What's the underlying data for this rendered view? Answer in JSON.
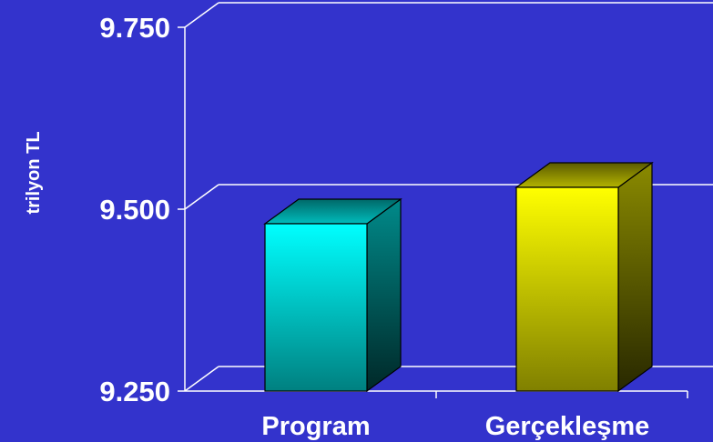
{
  "chart_data": {
    "type": "bar",
    "categories": [
      "Program",
      "Gerçekleşme"
    ],
    "values": [
      9.48,
      9.53
    ],
    "ylabel": "trilyon TL",
    "xlabel": "",
    "ylim": [
      9.25,
      9.75
    ],
    "yticks": [
      9.25,
      9.5,
      9.75
    ],
    "ytick_labels": [
      "9.250",
      "9.500",
      "9.750"
    ],
    "grid": true,
    "legend": "none",
    "colors": {
      "background": "#3333cc",
      "program_front_top": "#00ffff",
      "program_front_bottom": "#008080",
      "gercek_front_top": "#ffff00",
      "gercek_front_bottom": "#808000",
      "lines": "#ffffff"
    }
  }
}
